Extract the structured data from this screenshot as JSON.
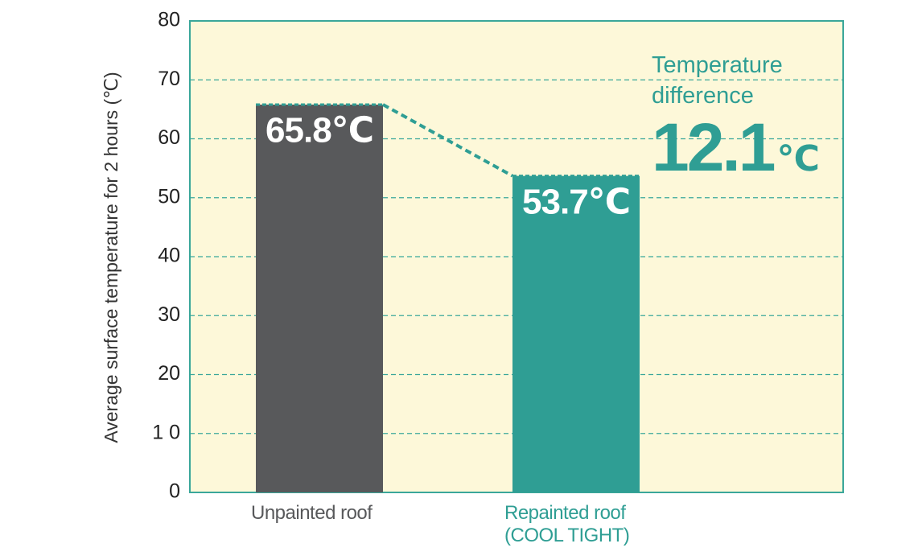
{
  "chart_data": {
    "type": "bar",
    "y_label": "Average surface temperature for 2 hours (℃)",
    "categories": [
      "Unpainted roof",
      "Repainted roof (COOL TIGHT)"
    ],
    "values": [
      65.8,
      53.7
    ],
    "value_labels": [
      "65.8℃",
      "53.7℃"
    ],
    "colors": [
      "#58595b",
      "#2f9e94"
    ],
    "category_colors": [
      "#58595b",
      "#2f9e94"
    ],
    "ylim": [
      0,
      80
    ],
    "yticks": [
      0,
      {
        "value": 10,
        "label": "1 0"
      },
      20,
      30,
      40,
      50,
      60,
      70,
      80
    ],
    "grid": true,
    "annotation": {
      "label": "Temperature difference",
      "value": 12.1,
      "unit": "℃"
    }
  }
}
